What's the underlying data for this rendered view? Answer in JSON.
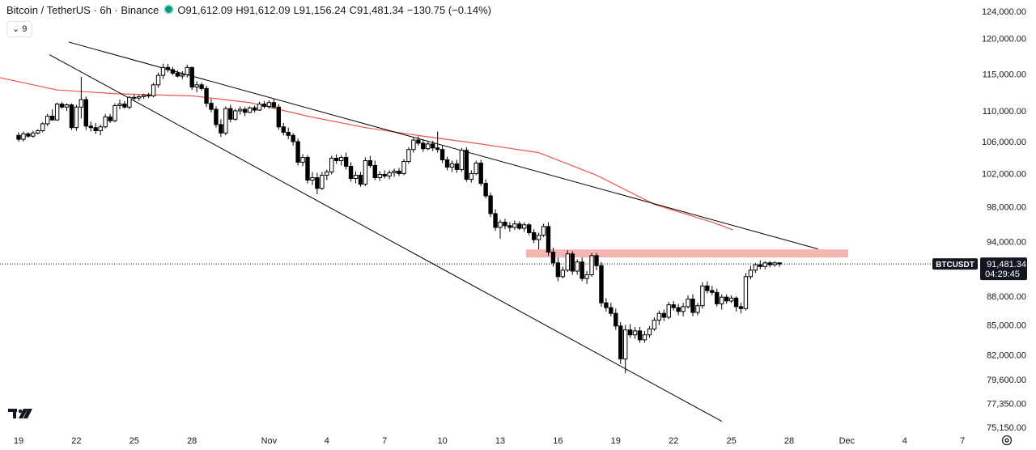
{
  "legend": {
    "symbol": "Bitcoin / TetherUS · 6h · Binance",
    "open_label": "O",
    "open": "91,612.09",
    "high_label": "H",
    "high": "91,612.09",
    "low_label": "L",
    "low": "91,156.24",
    "close_label": "C",
    "close": "91,481.34",
    "change": "−130.75 (−0.14%)",
    "status_color": "#089981"
  },
  "indicator_toggle": {
    "label": "9",
    "icon": "chevron-down-icon"
  },
  "price_tag": {
    "ticker": "BTCUSDT",
    "price": "91,481.34",
    "countdown": "04:29:45"
  },
  "colors": {
    "up": "#ffffff",
    "down": "#000000",
    "wick": "#000000",
    "ma": "#ef5350",
    "zone": "#f5b5b3",
    "trendline": "#000000"
  },
  "chart_data": {
    "type": "candlestick",
    "interval": "6h",
    "y_log": true,
    "ylim": [
      75150,
      124000
    ],
    "y_ticks": [
      "124,000.00",
      "120,000.00",
      "115,000.00",
      "110,000.00",
      "106,000.00",
      "102,000.00",
      "98,000.00",
      "94,000.00",
      "88,000.00",
      "85,000.00",
      "82,000.00",
      "79,600.00",
      "77,350.00",
      "75,150.00"
    ],
    "x_ticks": [
      "19",
      "22",
      "25",
      "28",
      "Nov",
      "4",
      "7",
      "10",
      "13",
      "16",
      "19",
      "22",
      "25",
      "28",
      "Dec",
      "4",
      "7"
    ],
    "current_price": 91481.34,
    "resistance_zone": [
      92200,
      93100
    ],
    "ma_line": [
      {
        "day": -1.0,
        "v": 114500
      },
      {
        "day": 2,
        "v": 112800
      },
      {
        "day": 5,
        "v": 112300
      },
      {
        "day": 9,
        "v": 112000
      },
      {
        "day": 12,
        "v": 111100
      },
      {
        "day": 15,
        "v": 109300
      },
      {
        "day": 18,
        "v": 107800
      },
      {
        "day": 21,
        "v": 106700
      },
      {
        "day": 24,
        "v": 105700
      },
      {
        "day": 27,
        "v": 104600
      },
      {
        "day": 30,
        "v": 101800
      },
      {
        "day": 33,
        "v": 98300
      },
      {
        "day": 36,
        "v": 96200
      },
      {
        "day": 37.1,
        "v": 95300
      }
    ],
    "trendlines": [
      {
        "name": "upper",
        "from": {
          "day": 2.6,
          "v": 119500
        },
        "to": {
          "day": 41.5,
          "v": 93150
        }
      },
      {
        "name": "lower",
        "from": {
          "day": 1.6,
          "v": 117700
        },
        "to": {
          "day": 36.5,
          "v": 75700
        }
      }
    ],
    "candles": [
      [
        0.0,
        106800,
        107200,
        106000,
        106300
      ],
      [
        0.25,
        106300,
        107300,
        106000,
        107000
      ],
      [
        0.5,
        107000,
        107200,
        106500,
        106700
      ],
      [
        0.75,
        106700,
        107400,
        106500,
        107100
      ],
      [
        1.0,
        107100,
        107600,
        106900,
        107400
      ],
      [
        1.25,
        107400,
        108500,
        107200,
        108300
      ],
      [
        1.5,
        108300,
        109600,
        108000,
        109300
      ],
      [
        1.75,
        109300,
        110200,
        108700,
        108800
      ],
      [
        2.0,
        108800,
        111100,
        108700,
        110900
      ],
      [
        2.25,
        110900,
        111200,
        110300,
        110500
      ],
      [
        2.5,
        110500,
        111000,
        110000,
        110800
      ],
      [
        2.75,
        110800,
        111000,
        107500,
        107800
      ],
      [
        3.0,
        107800,
        110800,
        107400,
        110500
      ],
      [
        3.25,
        110500,
        114600,
        109000,
        111500
      ],
      [
        3.5,
        111500,
        111900,
        107500,
        108000
      ],
      [
        3.75,
        108000,
        108600,
        107300,
        107800
      ],
      [
        4.0,
        107800,
        108400,
        107000,
        107400
      ],
      [
        4.25,
        107400,
        108200,
        106800,
        107900
      ],
      [
        4.5,
        107900,
        109600,
        107700,
        109200
      ],
      [
        4.75,
        109200,
        109600,
        108400,
        108700
      ],
      [
        5.0,
        108700,
        111000,
        108500,
        110700
      ],
      [
        5.25,
        110700,
        111500,
        110200,
        110900
      ],
      [
        5.5,
        110900,
        111300,
        110300,
        110500
      ],
      [
        5.75,
        110500,
        112000,
        110200,
        111800
      ],
      [
        6.0,
        111800,
        112200,
        111300,
        111700
      ],
      [
        6.25,
        111700,
        112100,
        111300,
        111900
      ],
      [
        6.5,
        111900,
        112300,
        111600,
        112100
      ],
      [
        6.75,
        112100,
        112400,
        111700,
        112000
      ],
      [
        7.0,
        112000,
        113800,
        111800,
        113500
      ],
      [
        7.25,
        113500,
        115200,
        113100,
        114800
      ],
      [
        7.5,
        114800,
        116400,
        114300,
        115900
      ],
      [
        7.75,
        115900,
        116400,
        115200,
        115600
      ],
      [
        8.0,
        115600,
        116000,
        114800,
        115100
      ],
      [
        8.25,
        115100,
        115500,
        114500,
        114700
      ],
      [
        8.5,
        114700,
        115400,
        114300,
        114900
      ],
      [
        8.75,
        114900,
        116300,
        114500,
        115900
      ],
      [
        9.0,
        115900,
        116000,
        112800,
        113200
      ],
      [
        9.25,
        113200,
        114000,
        112500,
        113500
      ],
      [
        9.5,
        113500,
        113800,
        112700,
        113000
      ],
      [
        9.75,
        113000,
        113400,
        110500,
        111000
      ],
      [
        10.0,
        111000,
        111600,
        109800,
        110200
      ],
      [
        10.25,
        110200,
        110600,
        107800,
        108200
      ],
      [
        10.5,
        108200,
        108900,
        106600,
        107100
      ],
      [
        10.75,
        107100,
        110600,
        106800,
        110300
      ],
      [
        11.0,
        110300,
        110800,
        108500,
        108900
      ],
      [
        11.25,
        108900,
        110300,
        108700,
        110000
      ],
      [
        11.5,
        110000,
        110600,
        109500,
        110200
      ],
      [
        11.75,
        110200,
        110500,
        109300,
        109800
      ],
      [
        12.0,
        109800,
        110600,
        109700,
        110400
      ],
      [
        12.25,
        110400,
        110700,
        109800,
        110100
      ],
      [
        12.5,
        110100,
        111200,
        110000,
        110900
      ],
      [
        12.75,
        110900,
        111300,
        110300,
        110600
      ],
      [
        13.0,
        110600,
        111400,
        110300,
        111100
      ],
      [
        13.25,
        111100,
        111600,
        110300,
        110500
      ],
      [
        13.5,
        110500,
        110900,
        107500,
        107900
      ],
      [
        13.75,
        107900,
        108400,
        106800,
        107200
      ],
      [
        14.0,
        107200,
        107800,
        106300,
        106800
      ],
      [
        14.25,
        106800,
        107100,
        105500,
        106000
      ],
      [
        14.5,
        106000,
        106400,
        103000,
        103400
      ],
      [
        14.75,
        103400,
        104400,
        102900,
        104000
      ],
      [
        15.0,
        104000,
        104300,
        100800,
        101200
      ],
      [
        15.25,
        101200,
        102200,
        100600,
        101500
      ],
      [
        15.5,
        101500,
        102100,
        99500,
        100200
      ],
      [
        15.75,
        100200,
        102200,
        100000,
        101800
      ],
      [
        16.0,
        101800,
        102500,
        101200,
        102200
      ],
      [
        16.25,
        102200,
        104200,
        101900,
        103900
      ],
      [
        16.5,
        103900,
        104400,
        103200,
        103600
      ],
      [
        16.75,
        103600,
        104300,
        103000,
        104000
      ],
      [
        17.0,
        104000,
        104600,
        102500,
        102900
      ],
      [
        17.25,
        102900,
        103400,
        101000,
        101400
      ],
      [
        17.5,
        101400,
        102300,
        100800,
        101800
      ],
      [
        17.75,
        101800,
        102200,
        100400,
        100700
      ],
      [
        18.0,
        100700,
        104000,
        100500,
        103600
      ],
      [
        18.25,
        103600,
        104200,
        102700,
        103000
      ],
      [
        18.5,
        103000,
        103600,
        101200,
        101500
      ],
      [
        18.75,
        101500,
        102300,
        101100,
        101900
      ],
      [
        19.0,
        101900,
        102400,
        101400,
        101700
      ],
      [
        19.25,
        101700,
        102400,
        101300,
        102100
      ],
      [
        19.5,
        102100,
        102600,
        101600,
        102300
      ],
      [
        19.75,
        102300,
        102700,
        101700,
        102000
      ],
      [
        20.0,
        102000,
        103800,
        101800,
        103500
      ],
      [
        20.25,
        103500,
        105300,
        103200,
        105000
      ],
      [
        20.5,
        105000,
        106500,
        104600,
        106200
      ],
      [
        20.75,
        106200,
        106700,
        105500,
        105800
      ],
      [
        21.0,
        105800,
        106300,
        104700,
        105100
      ],
      [
        21.25,
        105100,
        106100,
        104900,
        105700
      ],
      [
        21.5,
        105700,
        106100,
        104800,
        105200
      ],
      [
        21.75,
        105200,
        107300,
        104600,
        105000
      ],
      [
        22.0,
        105000,
        105500,
        103300,
        103700
      ],
      [
        22.25,
        103700,
        104100,
        102400,
        102800
      ],
      [
        22.5,
        102800,
        103600,
        102200,
        103200
      ],
      [
        22.75,
        103200,
        103700,
        102100,
        102500
      ],
      [
        23.0,
        102500,
        105200,
        102200,
        104900
      ],
      [
        23.25,
        104900,
        105300,
        101000,
        101300
      ],
      [
        23.5,
        101300,
        102400,
        100900,
        102000
      ],
      [
        23.75,
        102000,
        103600,
        101800,
        103300
      ],
      [
        24.0,
        103300,
        103700,
        100500,
        100800
      ],
      [
        24.25,
        100800,
        101300,
        99000,
        99300
      ],
      [
        24.5,
        99300,
        99700,
        96800,
        97200
      ],
      [
        24.75,
        97200,
        97700,
        95200,
        95600
      ],
      [
        25.0,
        95600,
        96500,
        94300,
        96200
      ],
      [
        25.25,
        96200,
        96600,
        95400,
        95800
      ],
      [
        25.5,
        95800,
        96200,
        95100,
        95600
      ],
      [
        25.75,
        95600,
        96400,
        95300,
        96000
      ],
      [
        26.0,
        96000,
        96300,
        95300,
        95500
      ],
      [
        26.25,
        95500,
        96200,
        95100,
        95900
      ],
      [
        26.5,
        95900,
        96100,
        94700,
        95000
      ],
      [
        26.75,
        95000,
        95400,
        93800,
        94200
      ],
      [
        27.0,
        94200,
        95000,
        93100,
        94700
      ],
      [
        27.25,
        94700,
        96000,
        94500,
        95700
      ],
      [
        27.5,
        95700,
        96200,
        92400,
        92800
      ],
      [
        27.75,
        92800,
        93300,
        91200,
        91600
      ],
      [
        28.0,
        91600,
        92200,
        89600,
        90100
      ],
      [
        28.25,
        90100,
        91200,
        89900,
        90800
      ],
      [
        28.5,
        90800,
        93000,
        90600,
        92600
      ],
      [
        28.75,
        92600,
        92900,
        90300,
        90700
      ],
      [
        29.0,
        90700,
        92000,
        90300,
        91700
      ],
      [
        29.25,
        91700,
        92200,
        89600,
        89900
      ],
      [
        29.5,
        89900,
        90700,
        89300,
        90300
      ],
      [
        29.75,
        90300,
        92700,
        90100,
        92400
      ],
      [
        30.0,
        92400,
        92700,
        90800,
        91300
      ],
      [
        30.25,
        91300,
        91700,
        86900,
        87300
      ],
      [
        30.5,
        87300,
        87800,
        86400,
        86800
      ],
      [
        30.75,
        86800,
        87300,
        85900,
        86200
      ],
      [
        31.0,
        86200,
        86700,
        84500,
        84900
      ],
      [
        31.25,
        84900,
        85300,
        81100,
        81600
      ],
      [
        31.5,
        81600,
        85000,
        80200,
        84500
      ],
      [
        31.75,
        84500,
        85100,
        83700,
        84000
      ],
      [
        32.0,
        84000,
        84800,
        83600,
        84400
      ],
      [
        32.25,
        84400,
        84800,
        83200,
        83500
      ],
      [
        32.5,
        83500,
        84400,
        83200,
        84000
      ],
      [
        32.75,
        84000,
        84900,
        83700,
        84600
      ],
      [
        33.0,
        84600,
        85800,
        84400,
        85500
      ],
      [
        33.25,
        85500,
        86500,
        85000,
        86200
      ],
      [
        33.5,
        86200,
        86600,
        85400,
        85800
      ],
      [
        33.75,
        85800,
        87400,
        85600,
        87100
      ],
      [
        34.0,
        87100,
        87500,
        86500,
        86800
      ],
      [
        34.25,
        86800,
        87200,
        86000,
        86400
      ],
      [
        34.5,
        86400,
        87300,
        85900,
        86900
      ],
      [
        34.75,
        86900,
        88100,
        86700,
        87700
      ],
      [
        35.0,
        87700,
        88200,
        85900,
        86300
      ],
      [
        35.25,
        86300,
        87300,
        86000,
        87000
      ],
      [
        35.5,
        87000,
        89500,
        86700,
        89100
      ],
      [
        35.75,
        89100,
        89600,
        88300,
        88600
      ],
      [
        36.0,
        88600,
        89100,
        88100,
        88400
      ],
      [
        36.25,
        88400,
        88800,
        86900,
        87200
      ],
      [
        36.5,
        87200,
        88200,
        86600,
        87900
      ],
      [
        36.75,
        87900,
        88200,
        87200,
        87500
      ],
      [
        37.0,
        87500,
        88100,
        87300,
        87800
      ],
      [
        37.25,
        87800,
        88000,
        86400,
        86900
      ],
      [
        37.5,
        86900,
        87300,
        86200,
        86700
      ],
      [
        37.75,
        86700,
        90500,
        86500,
        90100
      ],
      [
        38.0,
        90100,
        91300,
        89800,
        90800
      ],
      [
        38.25,
        90800,
        91600,
        90500,
        91400
      ],
      [
        38.5,
        91400,
        91900,
        90900,
        91200
      ],
      [
        38.75,
        91200,
        91800,
        90900,
        91600
      ],
      [
        39.0,
        91600,
        91800,
        91100,
        91400
      ],
      [
        39.25,
        91400,
        91800,
        91200,
        91600
      ],
      [
        39.5,
        91612,
        91612,
        91156,
        91481
      ]
    ]
  }
}
